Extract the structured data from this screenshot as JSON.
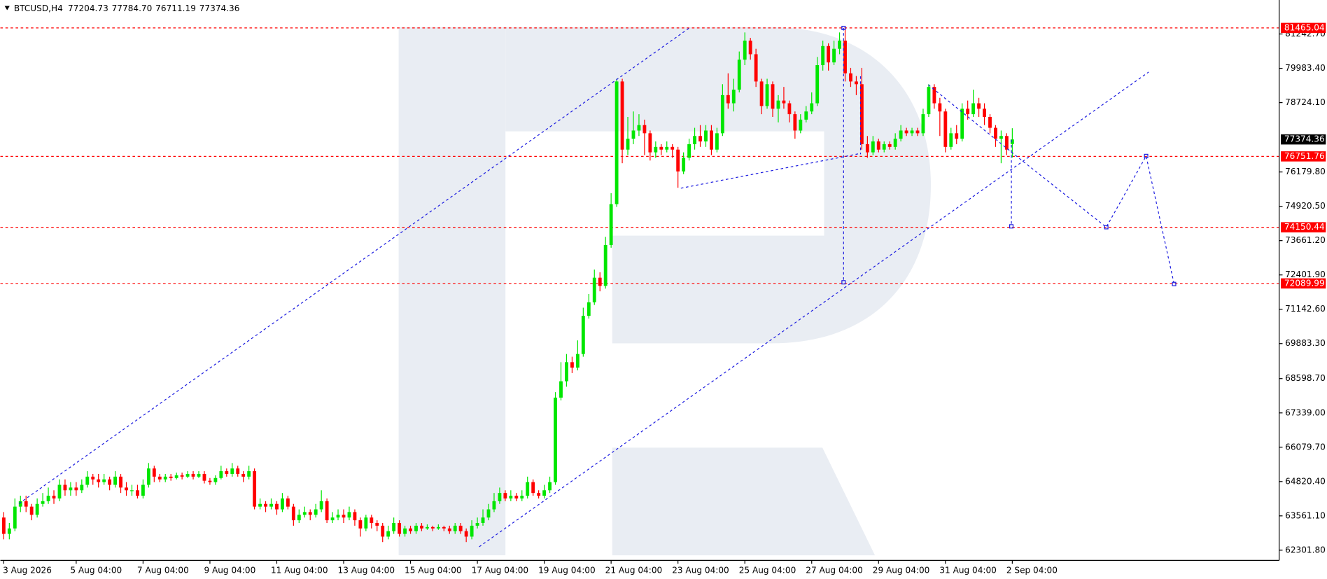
{
  "chart_data": {
    "type": "candlestick",
    "title": "BTCUSD,H4",
    "title_values": [
      "77204.73",
      "77784.70",
      "76711.19",
      "77374.36"
    ],
    "up_color": "#00e600",
    "down_color": "#ff0000",
    "level_color": "#ff0000",
    "levels": [
      81465.04,
      76751.76,
      74150.44,
      72089.99
    ],
    "ylim": [
      61960,
      82490
    ],
    "yticks": [
      {
        "value": 81242.7,
        "label": "81242.70"
      },
      {
        "value": 79983.4,
        "label": "79983.40"
      },
      {
        "value": 78724.1,
        "label": "78724.10"
      },
      {
        "value": 76179.8,
        "label": "76179.80"
      },
      {
        "value": 74920.5,
        "label": "74920.50"
      },
      {
        "value": 73661.2,
        "label": "73661.20"
      },
      {
        "value": 72401.9,
        "label": "72401.90"
      },
      {
        "value": 71142.6,
        "label": "71142.60"
      },
      {
        "value": 69883.3,
        "label": "69883.30"
      },
      {
        "value": 68598.7,
        "label": "68598.70"
      },
      {
        "value": 67339.0,
        "label": "67339.00"
      },
      {
        "value": 66079.7,
        "label": "66079.70"
      },
      {
        "value": 64820.4,
        "label": "64820.40"
      },
      {
        "value": 63561.1,
        "label": "63561.10"
      },
      {
        "value": 62301.8,
        "label": "62301.80"
      }
    ],
    "categories": [
      "3 Aug 2026",
      null,
      null,
      null,
      null,
      null,
      null,
      null,
      null,
      null,
      null,
      null,
      null,
      "5 Aug 04:00",
      null,
      null,
      null,
      null,
      null,
      null,
      null,
      null,
      null,
      null,
      null,
      "7 Aug 04:00",
      null,
      null,
      null,
      null,
      null,
      null,
      null,
      null,
      null,
      null,
      null,
      "9 Aug 04:00",
      null,
      null,
      null,
      null,
      null,
      null,
      null,
      null,
      null,
      null,
      null,
      "11 Aug 04:00",
      null,
      null,
      null,
      null,
      null,
      null,
      null,
      null,
      null,
      null,
      null,
      "13 Aug 04:00",
      null,
      null,
      null,
      null,
      null,
      null,
      null,
      null,
      null,
      null,
      null,
      "15 Aug 04:00",
      null,
      null,
      null,
      null,
      null,
      null,
      null,
      null,
      null,
      null,
      null,
      "17 Aug 04:00",
      null,
      null,
      null,
      null,
      null,
      null,
      null,
      null,
      null,
      null,
      null,
      "19 Aug 04:00",
      null,
      null,
      null,
      null,
      null,
      null,
      null,
      null,
      null,
      null,
      null,
      "21 Aug 04:00",
      null,
      null,
      null,
      null,
      null,
      null,
      null,
      null,
      null,
      null,
      null,
      "23 Aug 04:00",
      null,
      null,
      null,
      null,
      null,
      null,
      null,
      null,
      null,
      null,
      null,
      "25 Aug 04:00",
      null,
      null,
      null,
      null,
      null,
      null,
      null,
      null,
      null,
      null,
      null,
      "27 Aug 04:00",
      null,
      null,
      null,
      null,
      null,
      null,
      null,
      null,
      null,
      null,
      null,
      "29 Aug 04:00",
      null,
      null,
      null,
      null,
      null,
      null,
      null,
      null,
      null,
      null,
      null,
      "31 Aug 04:00",
      null,
      null,
      null,
      null,
      null,
      null,
      null,
      null,
      null,
      null,
      null,
      "2 Sep 04:00"
    ],
    "open": [
      63500,
      62900,
      63100,
      63900,
      64100,
      63900,
      63600,
      64000,
      64100,
      64300,
      64200,
      64700,
      64500,
      64600,
      64500,
      64700,
      65000,
      64900,
      64800,
      64900,
      64700,
      65000,
      64600,
      64500,
      64500,
      64300,
      64700,
      65300,
      65000,
      64900,
      65000,
      64950,
      65050,
      65000,
      65100,
      65000,
      65100,
      64850,
      64800,
      64950,
      65200,
      65100,
      65300,
      65100,
      65000,
      65200,
      63900,
      64000,
      63900,
      64000,
      63800,
      64200,
      63900,
      63400,
      63600,
      63700,
      63600,
      63800,
      64100,
      63400,
      63500,
      63600,
      63500,
      63700,
      63400,
      63100,
      63500,
      63300,
      63200,
      62800,
      63000,
      63300,
      62900,
      63100,
      63000,
      63200,
      63100,
      63150,
      63100,
      63150,
      63100,
      63000,
      63200,
      63000,
      62800,
      63200,
      63300,
      63500,
      63800,
      64100,
      64400,
      64200,
      64300,
      64200,
      64300,
      64800,
      64400,
      64300,
      64500,
      64800,
      67900,
      68500,
      69200,
      69000,
      69500,
      70900,
      71400,
      72300,
      72000,
      73500,
      75000,
      79500,
      77000,
      77400,
      77700,
      77900,
      77600,
      76900,
      77100,
      77000,
      77100,
      77000,
      76200,
      76700,
      77200,
      77500,
      77300,
      77700,
      77000,
      77600,
      79000,
      78700,
      79200,
      80300,
      81000,
      80500,
      79500,
      78600,
      79400,
      78500,
      78800,
      78700,
      78300,
      77700,
      78100,
      78400,
      78700,
      80100,
      80800,
      80200,
      80700,
      81000,
      79800,
      79500,
      79400,
      77200,
      76900,
      77300,
      77000,
      77200,
      77100,
      77400,
      77700,
      77600,
      77700,
      77600,
      78300,
      79300,
      78700,
      78400,
      77100,
      77600,
      77400,
      78500,
      78300,
      78700,
      78500,
      78200,
      77800,
      77400,
      77500,
      77204.73
    ],
    "high": [
      63700,
      63300,
      64200,
      64300,
      64300,
      64000,
      64200,
      64400,
      64600,
      64500,
      64900,
      64900,
      64800,
      64800,
      64900,
      65200,
      65100,
      65100,
      65100,
      65000,
      65200,
      65100,
      64800,
      64700,
      64700,
      64900,
      65500,
      65400,
      65100,
      65100,
      65100,
      65150,
      65150,
      65200,
      65200,
      65200,
      65200,
      64950,
      65050,
      65400,
      65300,
      65500,
      65400,
      65200,
      65400,
      65300,
      64200,
      64100,
      64200,
      64100,
      64400,
      64300,
      64000,
      63800,
      63900,
      63800,
      64000,
      64500,
      64200,
      63700,
      63800,
      63800,
      63900,
      63800,
      63500,
      63600,
      63600,
      63400,
      63300,
      63200,
      63500,
      63400,
      63200,
      63200,
      63300,
      63300,
      63250,
      63200,
      63250,
      63200,
      63200,
      63300,
      63300,
      63100,
      63400,
      63500,
      63800,
      64000,
      64400,
      64600,
      64500,
      64500,
      64400,
      64500,
      65000,
      64900,
      64500,
      64700,
      65000,
      68100,
      69200,
      69500,
      69400,
      70000,
      71200,
      71700,
      72600,
      72500,
      73800,
      75400,
      79600,
      79600,
      78200,
      78400,
      78300,
      78100,
      77700,
      77300,
      77200,
      77300,
      77200,
      77100,
      76900,
      77400,
      77800,
      77900,
      77900,
      77900,
      77800,
      79400,
      79800,
      79600,
      80600,
      81300,
      81100,
      80700,
      79600,
      79600,
      79500,
      79000,
      79300,
      78800,
      78400,
      78300,
      78600,
      79100,
      80400,
      81000,
      80900,
      81000,
      81300,
      81465,
      80000,
      79700,
      80000,
      77500,
      77500,
      77400,
      77300,
      77300,
      77600,
      77900,
      77800,
      77800,
      77800,
      78500,
      79400,
      79400,
      78900,
      78500,
      77800,
      77900,
      78700,
      78800,
      79200,
      78900,
      78700,
      78300,
      77900,
      77700,
      77600,
      77784.7
    ],
    "low": [
      62700,
      62700,
      63000,
      63700,
      63700,
      63400,
      63500,
      63900,
      64000,
      64000,
      64100,
      64300,
      64300,
      64300,
      64400,
      64600,
      64700,
      64600,
      64700,
      64500,
      64600,
      64400,
      64300,
      64300,
      64200,
      64200,
      64600,
      64800,
      64800,
      64800,
      64850,
      64900,
      64900,
      64950,
      64900,
      64950,
      64750,
      64700,
      64700,
      64900,
      65000,
      65000,
      65000,
      64800,
      64900,
      63800,
      63800,
      63700,
      63800,
      63600,
      63700,
      63800,
      63200,
      63300,
      63500,
      63400,
      63500,
      63700,
      63300,
      63300,
      63400,
      63300,
      63400,
      63200,
      62800,
      63000,
      63100,
      63000,
      62600,
      62700,
      62900,
      62800,
      62800,
      62900,
      62900,
      63000,
      63050,
      63000,
      63050,
      63000,
      62900,
      62900,
      62900,
      62600,
      62700,
      63100,
      63200,
      63400,
      63700,
      64000,
      64100,
      64100,
      64100,
      64100,
      64200,
      64300,
      64200,
      64200,
      64400,
      64700,
      67800,
      68300,
      68800,
      68900,
      69400,
      70800,
      71300,
      71800,
      71900,
      73400,
      74900,
      76500,
      76800,
      77200,
      77500,
      76800,
      76600,
      76700,
      76800,
      76900,
      76700,
      75600,
      76100,
      76600,
      77000,
      77100,
      77100,
      76800,
      76900,
      77500,
      78500,
      78400,
      79100,
      80100,
      80300,
      79300,
      78300,
      78500,
      78200,
      78000,
      78500,
      78000,
      77400,
      77600,
      78000,
      78300,
      78600,
      79900,
      79900,
      80100,
      80500,
      79500,
      79300,
      79000,
      77000,
      76700,
      76800,
      76900,
      76900,
      77000,
      77000,
      77300,
      77500,
      77500,
      77500,
      77500,
      78200,
      78500,
      77500,
      76900,
      77000,
      77200,
      77300,
      78100,
      78200,
      78200,
      77900,
      77600,
      77100,
      76500,
      76800,
      76711.19
    ],
    "close": [
      62900,
      63100,
      63900,
      64100,
      63900,
      63600,
      64000,
      64100,
      64300,
      64200,
      64700,
      64500,
      64600,
      64500,
      64700,
      65000,
      64900,
      64800,
      64900,
      64700,
      65000,
      64600,
      64500,
      64500,
      64300,
      64700,
      65300,
      65000,
      64900,
      65000,
      64950,
      65050,
      65000,
      65100,
      65000,
      65100,
      64850,
      64800,
      64950,
      65200,
      65100,
      65300,
      65100,
      65000,
      65200,
      63900,
      64000,
      63900,
      64000,
      63800,
      64200,
      63900,
      63400,
      63600,
      63700,
      63600,
      63800,
      64100,
      63400,
      63500,
      63600,
      63500,
      63700,
      63400,
      63100,
      63500,
      63300,
      63200,
      62800,
      63000,
      63300,
      62900,
      63100,
      63000,
      63200,
      63100,
      63150,
      63100,
      63150,
      63100,
      63000,
      63200,
      63000,
      62800,
      63200,
      63300,
      63500,
      63800,
      64100,
      64400,
      64200,
      64300,
      64200,
      64300,
      64800,
      64400,
      64300,
      64500,
      64800,
      67900,
      68500,
      69200,
      69000,
      69500,
      70900,
      71400,
      72300,
      72000,
      73500,
      75000,
      79500,
      77000,
      77400,
      77700,
      77900,
      77600,
      76900,
      77100,
      77000,
      77100,
      77000,
      76200,
      76700,
      77200,
      77500,
      77300,
      77700,
      77000,
      77600,
      79000,
      78700,
      79200,
      80300,
      81000,
      80500,
      79500,
      78600,
      79400,
      78500,
      78800,
      78700,
      78300,
      77700,
      78100,
      78400,
      78700,
      80100,
      80800,
      80200,
      80700,
      81000,
      79800,
      79500,
      79400,
      77200,
      76900,
      77300,
      77000,
      77200,
      77100,
      77400,
      77700,
      77600,
      77700,
      77600,
      78300,
      79300,
      78700,
      78400,
      77100,
      77600,
      77400,
      78500,
      78300,
      78700,
      78500,
      78200,
      77800,
      77400,
      77500,
      77000,
      77374.36
    ]
  }
}
